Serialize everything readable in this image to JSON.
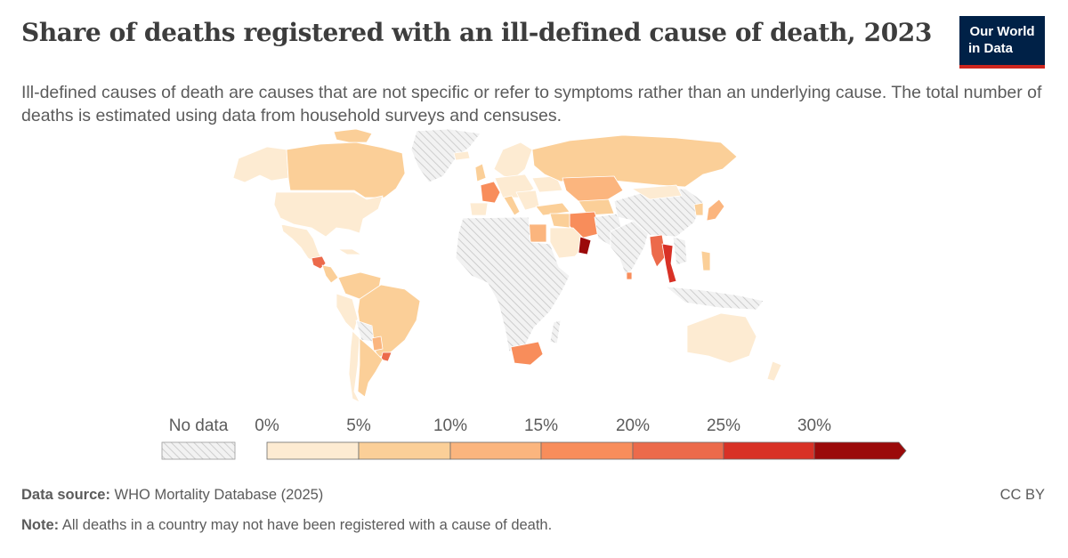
{
  "header": {
    "title": "Share of deaths registered with an ill-defined cause of death, 2023",
    "subtitle": "Ill-defined causes of death are causes that are not specific or refer to symptoms rather than an underlying cause. The total number of deaths is estimated using data from household surveys and censuses.",
    "logo_line1": "Our World",
    "logo_line2": "in Data"
  },
  "legend": {
    "no_data_label": "No data",
    "ticks": [
      "0%",
      "5%",
      "10%",
      "15%",
      "20%",
      "25%",
      "30%"
    ],
    "colors": [
      "#fdebd2",
      "#fbcf98",
      "#fbb57e",
      "#f88d5b",
      "#ec6a4b",
      "#d83126",
      "#9b0a0a"
    ]
  },
  "footer": {
    "source_label": "Data source:",
    "source_text": "WHO Mortality Database (2025)",
    "note_label": "Note:",
    "note_text": "All deaths in a country may not have been registered with a cause of death.",
    "license": "CC BY"
  },
  "colors": {
    "ocean": "#ffffff",
    "border": "#ffffff",
    "no_data_fill": "#ebebeb",
    "no_data_hatch": "#c9c9c9",
    "logo_bg": "#002147",
    "logo_accent": "#ce261e"
  }
}
